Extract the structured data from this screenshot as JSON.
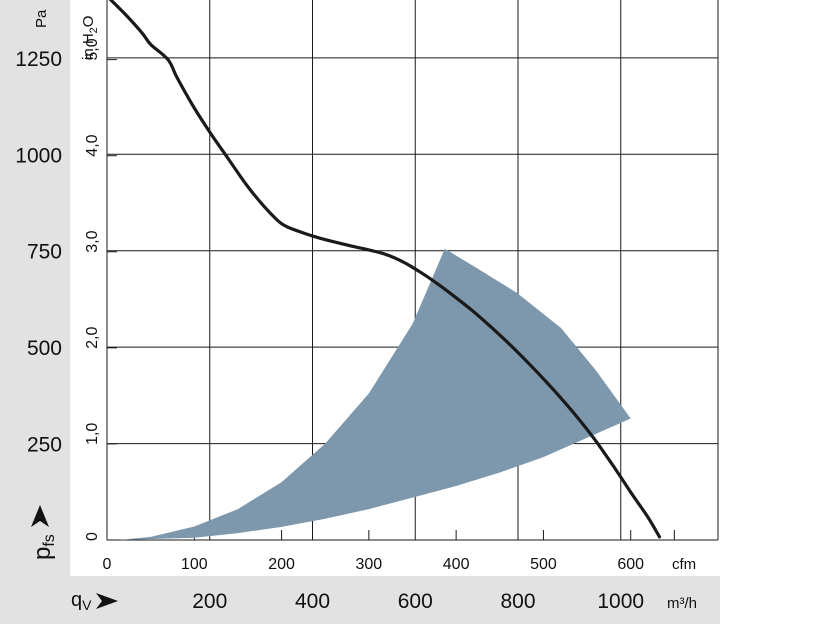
{
  "chart_data": {
    "type": "line",
    "title": "",
    "grid": true,
    "colors": {
      "curve": "#1a1a1a",
      "operating_area": "#7d97ac",
      "axis_band": "#e2e2e2",
      "grid": "#1a1a1a"
    },
    "x_axis": {
      "cfm_label": "cfm",
      "cfm_ticks": [
        "0",
        "100",
        "200",
        "300",
        "400",
        "500",
        "600"
      ],
      "cfm_range": [
        0,
        700
      ],
      "m3h_label": "m³/h",
      "m3h_ticks": [
        "200",
        "400",
        "600",
        "800",
        "1000"
      ],
      "symbol_main": "q",
      "symbol_sub": "V"
    },
    "y_axis": {
      "pa_label": "Pa",
      "pa_ticks": [
        "250",
        "500",
        "750",
        "1000",
        "1250"
      ],
      "pa_range": [
        0,
        1400
      ],
      "inh2o_label_main": "in H",
      "inh2o_label_sub": "2",
      "inh2o_label_end": "O",
      "inh2o_ticks": [
        "0",
        "1,0",
        "2,0",
        "3,0",
        "4,0",
        "5,0"
      ],
      "symbol_main": "p",
      "symbol_sub": "fs"
    },
    "series": [
      {
        "x_unit": "cfm",
        "y_unit": "Pa",
        "points": [
          [
            0,
            1410
          ],
          [
            20,
            1365
          ],
          [
            40,
            1315
          ],
          [
            50,
            1285
          ],
          [
            70,
            1245
          ],
          [
            80,
            1200
          ],
          [
            100,
            1120
          ],
          [
            120,
            1050
          ],
          [
            140,
            985
          ],
          [
            160,
            920
          ],
          [
            180,
            865
          ],
          [
            200,
            820
          ],
          [
            220,
            800
          ],
          [
            240,
            785
          ],
          [
            260,
            773
          ],
          [
            280,
            762
          ],
          [
            300,
            752
          ],
          [
            320,
            740
          ],
          [
            340,
            720
          ],
          [
            360,
            693
          ],
          [
            380,
            662
          ],
          [
            400,
            628
          ],
          [
            420,
            592
          ],
          [
            440,
            552
          ],
          [
            460,
            510
          ],
          [
            480,
            465
          ],
          [
            500,
            418
          ],
          [
            520,
            368
          ],
          [
            540,
            315
          ],
          [
            560,
            257
          ],
          [
            580,
            192
          ],
          [
            600,
            124
          ],
          [
            620,
            58
          ],
          [
            633,
            8
          ]
        ]
      }
    ],
    "operating_range": {
      "x_unit": "cfm",
      "y_unit": "Pa",
      "upper": [
        [
          14,
          0
        ],
        [
          50,
          8
        ],
        [
          100,
          35
        ],
        [
          150,
          80
        ],
        [
          200,
          150
        ],
        [
          250,
          250
        ],
        [
          300,
          380
        ],
        [
          350,
          560
        ],
        [
          387,
          755
        ]
      ],
      "outer": [
        [
          387,
          755
        ],
        [
          420,
          710
        ],
        [
          470,
          640
        ],
        [
          520,
          550
        ],
        [
          560,
          440
        ],
        [
          600,
          315
        ]
      ],
      "lower": [
        [
          600,
          315
        ],
        [
          550,
          265
        ],
        [
          500,
          215
        ],
        [
          450,
          175
        ],
        [
          400,
          140
        ],
        [
          350,
          110
        ],
        [
          300,
          80
        ],
        [
          250,
          55
        ],
        [
          200,
          34
        ],
        [
          150,
          18
        ],
        [
          100,
          6
        ],
        [
          14,
          0
        ]
      ]
    }
  }
}
